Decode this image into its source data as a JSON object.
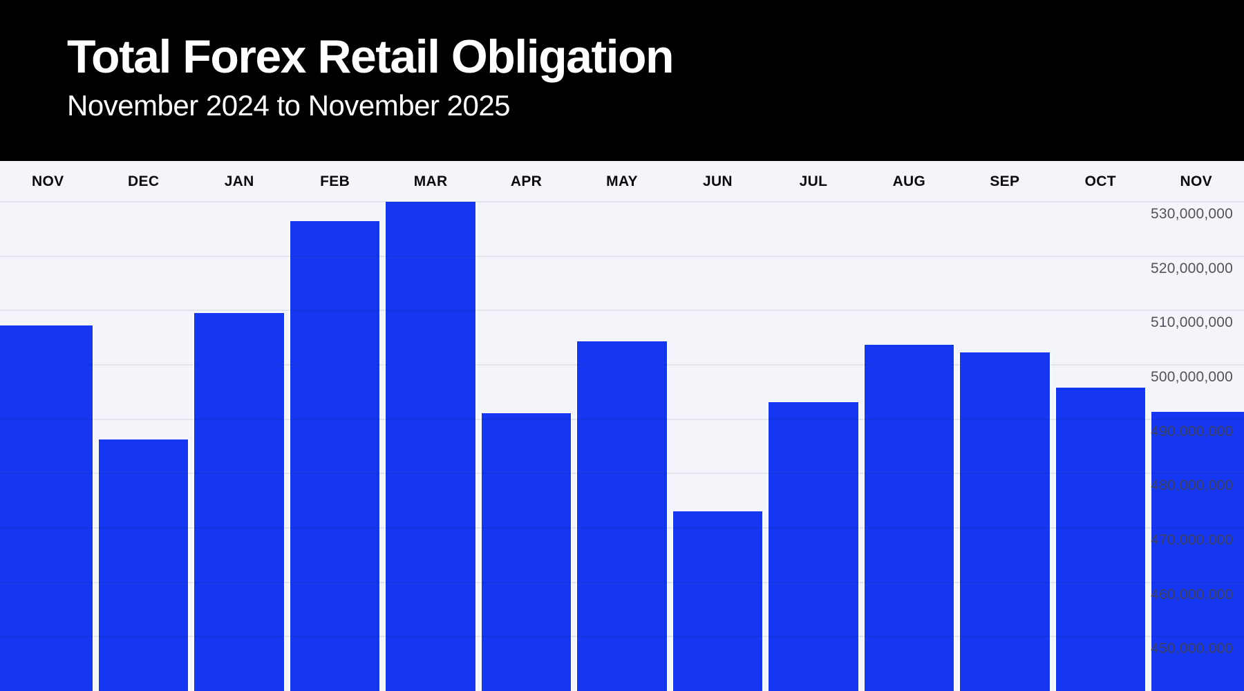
{
  "header": {
    "title": "Total Forex Retail Obligation",
    "subtitle": "November 2024 to November 2025"
  },
  "chart_data": {
    "type": "bar",
    "title": "Total Forex Retail Obligation",
    "subtitle": "November 2024 to November 2025",
    "categories": [
      "NOV",
      "DEC",
      "JAN",
      "FEB",
      "MAR",
      "APR",
      "MAY",
      "JUN",
      "JUL",
      "AUG",
      "SEP",
      "OCT",
      "NOV"
    ],
    "values": [
      507200000,
      486300000,
      509500000,
      526400000,
      530000000,
      491100000,
      504300000,
      473000000,
      493100000,
      503700000,
      502300000,
      495800000,
      491400000
    ],
    "xlabel": "",
    "ylabel": "",
    "y_axis": {
      "min": 440000000,
      "max": 530000000,
      "tick_step": 10000000,
      "tick_labels": [
        "530,000,000",
        "520,000,000",
        "510,000,000",
        "500,000,000",
        "490,000,000",
        "480,000,000",
        "470,000,000",
        "460,000,000",
        "450,000,000"
      ],
      "position": "right"
    },
    "x_axis_position": "top",
    "grid": "horizontal",
    "legend": "none",
    "colors": {
      "bar": "#1537f2",
      "bar_separator": "#ffffff",
      "plot_background": "#f4f4fb",
      "header_background": "#000000",
      "title_text": "#ffffff",
      "subtitle_text": "#ffffff",
      "month_label_text": "#0a0a0c",
      "axis_label_text": "#45464c",
      "gridline": "rgba(28,32,68,0.08)"
    }
  }
}
